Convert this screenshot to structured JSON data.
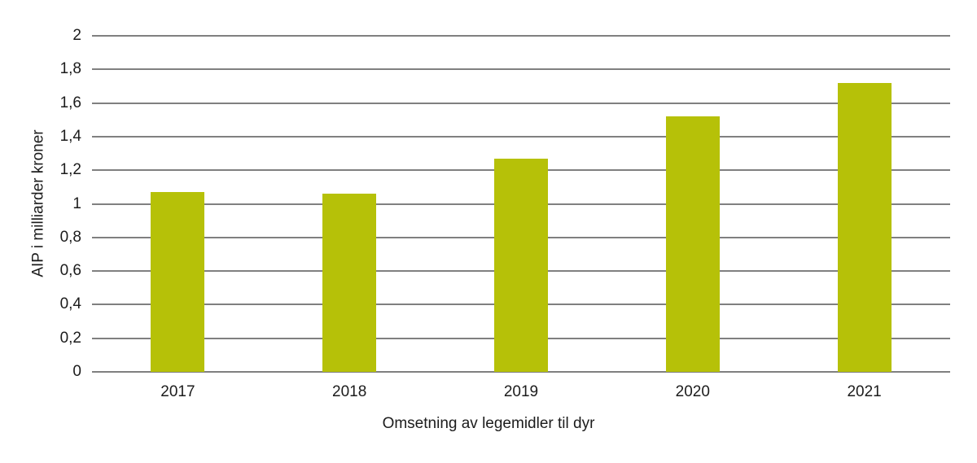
{
  "chart_data": {
    "type": "bar",
    "categories": [
      "2017",
      "2018",
      "2019",
      "2020",
      "2021"
    ],
    "values": [
      1.07,
      1.06,
      1.27,
      1.52,
      1.72
    ],
    "title": "",
    "xlabel": "Omsetning av legemidler til dyr",
    "ylabel": "AIP i milliarder kroner",
    "ylim": [
      0,
      2
    ],
    "ytick_step": 0.2,
    "ytick_labels": [
      "0",
      "0,2",
      "0,4",
      "0,6",
      "0,8",
      "1",
      "1,2",
      "1,4",
      "1,6",
      "1,8",
      "2"
    ],
    "grid": true,
    "legend": "none",
    "colors": {
      "bar": "#b6c108",
      "gridline": "#808080",
      "text": "#1c1c1c"
    }
  }
}
